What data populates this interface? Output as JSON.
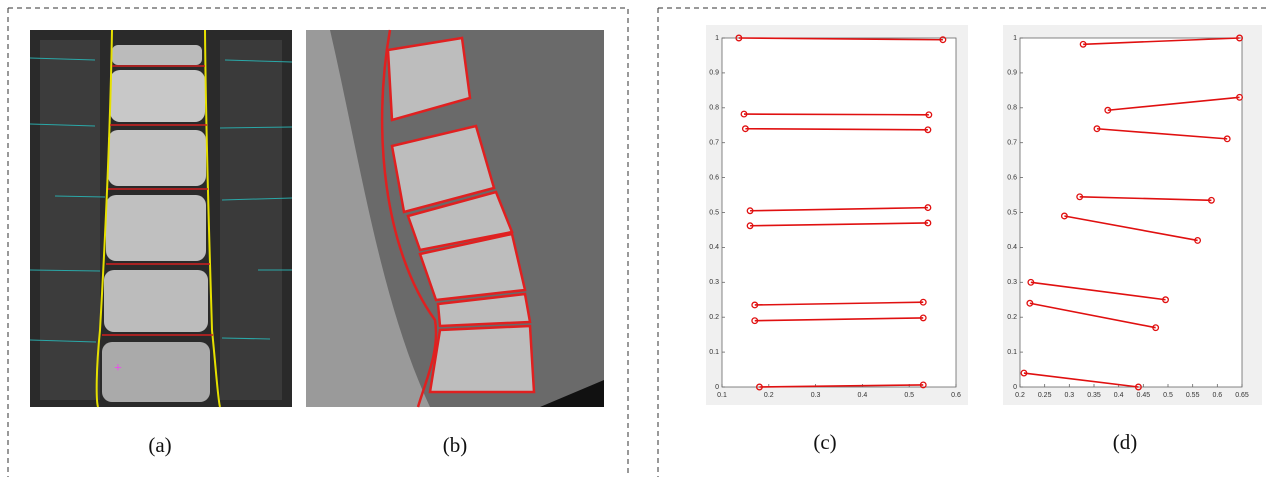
{
  "figure": {
    "captions": [
      "(a)",
      "(b)",
      "(c)",
      "(d)"
    ]
  },
  "chart_data": [
    {
      "type": "line",
      "color": "#e01010",
      "xlim": [
        0.1,
        0.6
      ],
      "xticks": [
        0.1,
        0.2,
        0.3,
        0.4,
        0.5,
        0.6
      ],
      "ylim": [
        0,
        1
      ],
      "yticks": [
        0,
        0.1,
        0.2,
        0.3,
        0.4,
        0.5,
        0.6,
        0.7,
        0.8,
        0.9,
        1
      ],
      "series": [
        {
          "x": [
            0.136,
            0.572
          ],
          "values": [
            1,
            0.995
          ]
        },
        {
          "x": [
            0.147,
            0.542
          ],
          "values": [
            0.782,
            0.78
          ]
        },
        {
          "x": [
            0.15,
            0.54
          ],
          "values": [
            0.74,
            0.737
          ]
        },
        {
          "x": [
            0.16,
            0.54
          ],
          "values": [
            0.505,
            0.514
          ]
        },
        {
          "x": [
            0.16,
            0.54
          ],
          "values": [
            0.462,
            0.47
          ]
        },
        {
          "x": [
            0.17,
            0.53
          ],
          "values": [
            0.235,
            0.243
          ]
        },
        {
          "x": [
            0.17,
            0.53
          ],
          "values": [
            0.19,
            0.198
          ]
        },
        {
          "x": [
            0.18,
            0.53
          ],
          "values": [
            0,
            0.006
          ]
        }
      ]
    },
    {
      "type": "line",
      "color": "#e01010",
      "xlim": [
        0.2,
        0.65
      ],
      "xticks": [
        0.2,
        0.25,
        0.3,
        0.35,
        0.4,
        0.45,
        0.5,
        0.55,
        0.6,
        0.65
      ],
      "ylim": [
        0,
        1
      ],
      "yticks": [
        0,
        0.1,
        0.2,
        0.3,
        0.4,
        0.5,
        0.6,
        0.7,
        0.8,
        0.9,
        1
      ],
      "series": [
        {
          "x": [
            0.328,
            0.645
          ],
          "values": [
            0.982,
            1
          ]
        },
        {
          "x": [
            0.378,
            0.645
          ],
          "values": [
            0.793,
            0.83
          ]
        },
        {
          "x": [
            0.356,
            0.62
          ],
          "values": [
            0.74,
            0.711
          ]
        },
        {
          "x": [
            0.321,
            0.588
          ],
          "values": [
            0.545,
            0.535
          ]
        },
        {
          "x": [
            0.29,
            0.56
          ],
          "values": [
            0.49,
            0.42
          ]
        },
        {
          "x": [
            0.222,
            0.495
          ],
          "values": [
            0.3,
            0.25
          ]
        },
        {
          "x": [
            0.22,
            0.475
          ],
          "values": [
            0.24,
            0.17
          ]
        },
        {
          "x": [
            0.208,
            0.44
          ],
          "values": [
            0.04,
            0
          ]
        }
      ]
    }
  ]
}
